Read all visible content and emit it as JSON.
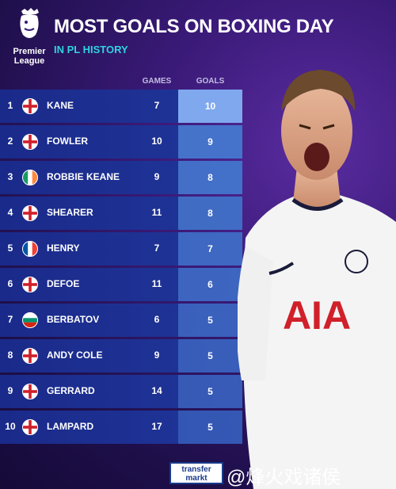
{
  "logo": {
    "line1": "Premier",
    "line2": "League"
  },
  "title": "MOST GOALS ON BOXING DAY",
  "subtitle": "IN PL HISTORY",
  "columns": {
    "games": "GAMES",
    "goals": "GOALS"
  },
  "rows": [
    {
      "rank": "1",
      "flag": "england",
      "name": "KANE",
      "games": "7",
      "goals": "10"
    },
    {
      "rank": "2",
      "flag": "england",
      "name": "FOWLER",
      "games": "10",
      "goals": "9"
    },
    {
      "rank": "3",
      "flag": "ireland",
      "name": "ROBBIE KEANE",
      "games": "9",
      "goals": "8"
    },
    {
      "rank": "4",
      "flag": "england",
      "name": "SHEARER",
      "games": "11",
      "goals": "8"
    },
    {
      "rank": "5",
      "flag": "france",
      "name": "HENRY",
      "games": "7",
      "goals": "7"
    },
    {
      "rank": "6",
      "flag": "england",
      "name": "DEFOE",
      "games": "11",
      "goals": "6"
    },
    {
      "rank": "7",
      "flag": "bulgaria",
      "name": "BERBATOV",
      "games": "6",
      "goals": "5"
    },
    {
      "rank": "8",
      "flag": "england",
      "name": "ANDY COLE",
      "games": "9",
      "goals": "5"
    },
    {
      "rank": "9",
      "flag": "england",
      "name": "GERRARD",
      "games": "14",
      "goals": "5"
    },
    {
      "rank": "10",
      "flag": "england",
      "name": "LAMPARD",
      "games": "17",
      "goals": "5"
    }
  ],
  "shirt": {
    "sponsor": "AIA"
  },
  "credit": {
    "line1": "transfer",
    "line2": "markt"
  },
  "watermark": "@烽火戏诸侯",
  "colors": {
    "accent": "#2fd3e0",
    "row": "#1a2a8a",
    "goals_cell": "#4a7ad0",
    "goals_cell_top": "#7fa8ee"
  }
}
